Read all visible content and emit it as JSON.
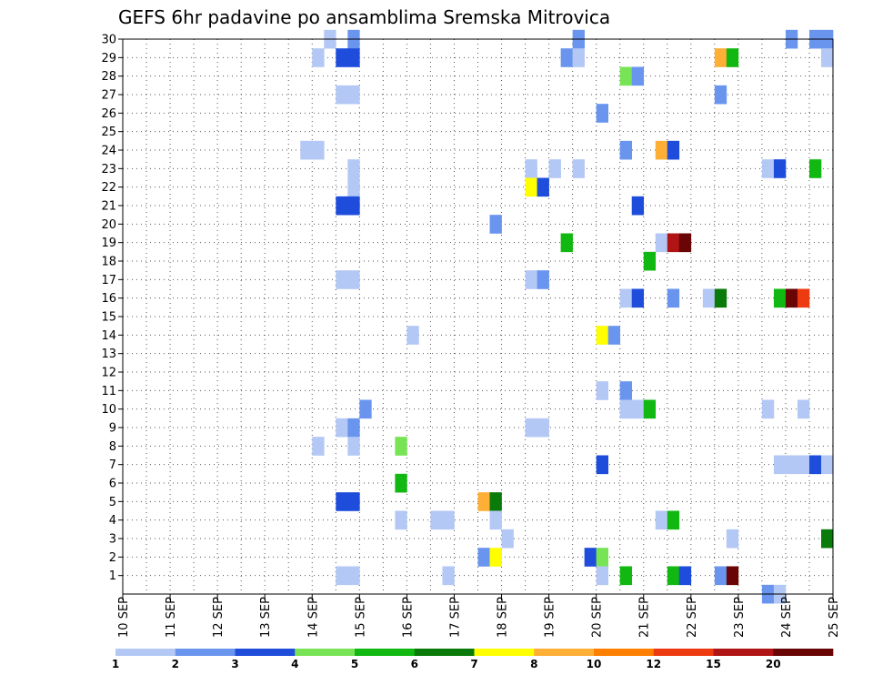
{
  "chart_data": {
    "type": "heatmap",
    "title": "GEFS 6hr padavine po ansamblima Sremska Mitrovica",
    "x_tick_labels": [
      "10 SEP",
      "11 SEP",
      "12 SEP",
      "13 SEP",
      "14 SEP",
      "15 SEP",
      "16 SEP",
      "17 SEP",
      "18 SEP",
      "19 SEP",
      "20 SEP",
      "21 SEP",
      "22 SEP",
      "23 SEP",
      "24 SEP",
      "25 SEP"
    ],
    "y_tick_labels": [
      "1",
      "2",
      "3",
      "4",
      "5",
      "6",
      "7",
      "8",
      "9",
      "10",
      "11",
      "12",
      "13",
      "14",
      "15",
      "16",
      "17",
      "18",
      "19",
      "20",
      "21",
      "22",
      "23",
      "24",
      "25",
      "26",
      "27",
      "28",
      "29",
      "30"
    ],
    "xlim": [
      0,
      60
    ],
    "ylim": [
      0,
      30
    ],
    "grid": true,
    "cell_note": "x = 6-hour step index from 10 SEP 00Z, y = ensemble member",
    "legend": {
      "colors": [
        "#b4c8f5",
        "#6a95ef",
        "#1e4ddb",
        "#78e455",
        "#11b811",
        "#0a7a0a",
        "#ffff00",
        "#ffae36",
        "#ff7f00",
        "#ee3a10",
        "#b01414",
        "#6a0505"
      ],
      "labels": [
        "1",
        "2",
        "3",
        "4",
        "5",
        "6",
        "7",
        "8",
        "10",
        "12",
        "15",
        "20"
      ]
    },
    "cells": [
      {
        "x": 17,
        "y": 30,
        "v": 1
      },
      {
        "x": 19,
        "y": 30,
        "v": 2
      },
      {
        "x": 38,
        "y": 30,
        "v": 2
      },
      {
        "x": 56,
        "y": 30,
        "v": 2
      },
      {
        "x": 58,
        "y": 30,
        "v": 2
      },
      {
        "x": 59,
        "y": 30,
        "v": 2
      },
      {
        "x": 16,
        "y": 29,
        "v": 1
      },
      {
        "x": 18,
        "y": 29,
        "v": 3
      },
      {
        "x": 19,
        "y": 29,
        "v": 3
      },
      {
        "x": 37,
        "y": 29,
        "v": 2
      },
      {
        "x": 38,
        "y": 29,
        "v": 1
      },
      {
        "x": 50,
        "y": 29,
        "v": 8
      },
      {
        "x": 51,
        "y": 29,
        "v": 5
      },
      {
        "x": 59,
        "y": 29,
        "v": 1
      },
      {
        "x": 42,
        "y": 28,
        "v": 4
      },
      {
        "x": 43,
        "y": 28,
        "v": 2
      },
      {
        "x": 18,
        "y": 27,
        "v": 1
      },
      {
        "x": 19,
        "y": 27,
        "v": 1
      },
      {
        "x": 50,
        "y": 27,
        "v": 2
      },
      {
        "x": 40,
        "y": 26,
        "v": 2
      },
      {
        "x": 15,
        "y": 24,
        "v": 1
      },
      {
        "x": 16,
        "y": 24,
        "v": 1
      },
      {
        "x": 42,
        "y": 24,
        "v": 2
      },
      {
        "x": 45,
        "y": 24,
        "v": 8
      },
      {
        "x": 46,
        "y": 24,
        "v": 3
      },
      {
        "x": 19,
        "y": 23,
        "v": 1
      },
      {
        "x": 34,
        "y": 23,
        "v": 1
      },
      {
        "x": 36,
        "y": 23,
        "v": 1
      },
      {
        "x": 38,
        "y": 23,
        "v": 1
      },
      {
        "x": 54,
        "y": 23,
        "v": 1
      },
      {
        "x": 55,
        "y": 23,
        "v": 3
      },
      {
        "x": 58,
        "y": 23,
        "v": 5
      },
      {
        "x": 19,
        "y": 22,
        "v": 1
      },
      {
        "x": 34,
        "y": 22,
        "v": 7
      },
      {
        "x": 35,
        "y": 22,
        "v": 3
      },
      {
        "x": 18,
        "y": 21,
        "v": 3
      },
      {
        "x": 19,
        "y": 21,
        "v": 3
      },
      {
        "x": 43,
        "y": 21,
        "v": 3
      },
      {
        "x": 31,
        "y": 20,
        "v": 2
      },
      {
        "x": 37,
        "y": 19,
        "v": 5
      },
      {
        "x": 45,
        "y": 19,
        "v": 1
      },
      {
        "x": 46,
        "y": 19,
        "v": 15
      },
      {
        "x": 47,
        "y": 19,
        "v": 20
      },
      {
        "x": 44,
        "y": 18,
        "v": 5
      },
      {
        "x": 18,
        "y": 17,
        "v": 1
      },
      {
        "x": 19,
        "y": 17,
        "v": 1
      },
      {
        "x": 34,
        "y": 17,
        "v": 1
      },
      {
        "x": 35,
        "y": 17,
        "v": 2
      },
      {
        "x": 42,
        "y": 16,
        "v": 1
      },
      {
        "x": 43,
        "y": 16,
        "v": 3
      },
      {
        "x": 46,
        "y": 16,
        "v": 2
      },
      {
        "x": 49,
        "y": 16,
        "v": 1
      },
      {
        "x": 50,
        "y": 16,
        "v": 6
      },
      {
        "x": 55,
        "y": 16,
        "v": 5
      },
      {
        "x": 56,
        "y": 16,
        "v": 20
      },
      {
        "x": 57,
        "y": 16,
        "v": 12
      },
      {
        "x": 24,
        "y": 14,
        "v": 1
      },
      {
        "x": 40,
        "y": 14,
        "v": 7
      },
      {
        "x": 41,
        "y": 14,
        "v": 2
      },
      {
        "x": 40,
        "y": 11,
        "v": 1
      },
      {
        "x": 42,
        "y": 11,
        "v": 2
      },
      {
        "x": 20,
        "y": 10,
        "v": 2
      },
      {
        "x": 42,
        "y": 10,
        "v": 1
      },
      {
        "x": 43,
        "y": 10,
        "v": 1
      },
      {
        "x": 44,
        "y": 10,
        "v": 5
      },
      {
        "x": 54,
        "y": 10,
        "v": 1
      },
      {
        "x": 57,
        "y": 10,
        "v": 1
      },
      {
        "x": 18,
        "y": 9,
        "v": 1
      },
      {
        "x": 19,
        "y": 9,
        "v": 2
      },
      {
        "x": 34,
        "y": 9,
        "v": 1
      },
      {
        "x": 35,
        "y": 9,
        "v": 1
      },
      {
        "x": 16,
        "y": 8,
        "v": 1
      },
      {
        "x": 19,
        "y": 8,
        "v": 1
      },
      {
        "x": 23,
        "y": 8,
        "v": 4
      },
      {
        "x": 40,
        "y": 7,
        "v": 3
      },
      {
        "x": 55,
        "y": 7,
        "v": 1
      },
      {
        "x": 56,
        "y": 7,
        "v": 1
      },
      {
        "x": 57,
        "y": 7,
        "v": 1
      },
      {
        "x": 58,
        "y": 7,
        "v": 3
      },
      {
        "x": 59,
        "y": 7,
        "v": 1
      },
      {
        "x": 23,
        "y": 6,
        "v": 5
      },
      {
        "x": 18,
        "y": 5,
        "v": 3
      },
      {
        "x": 19,
        "y": 5,
        "v": 3
      },
      {
        "x": 30,
        "y": 5,
        "v": 8
      },
      {
        "x": 31,
        "y": 5,
        "v": 6
      },
      {
        "x": 23,
        "y": 4,
        "v": 1
      },
      {
        "x": 26,
        "y": 4,
        "v": 1
      },
      {
        "x": 27,
        "y": 4,
        "v": 1
      },
      {
        "x": 31,
        "y": 4,
        "v": 1
      },
      {
        "x": 45,
        "y": 4,
        "v": 1
      },
      {
        "x": 46,
        "y": 4,
        "v": 5
      },
      {
        "x": 32,
        "y": 3,
        "v": 1
      },
      {
        "x": 51,
        "y": 3,
        "v": 1
      },
      {
        "x": 59,
        "y": 3,
        "v": 6
      },
      {
        "x": 30,
        "y": 2,
        "v": 2
      },
      {
        "x": 31,
        "y": 2,
        "v": 7
      },
      {
        "x": 39,
        "y": 2,
        "v": 3
      },
      {
        "x": 40,
        "y": 2,
        "v": 4
      },
      {
        "x": 18,
        "y": 1,
        "v": 1
      },
      {
        "x": 19,
        "y": 1,
        "v": 1
      },
      {
        "x": 27,
        "y": 1,
        "v": 1
      },
      {
        "x": 40,
        "y": 1,
        "v": 1
      },
      {
        "x": 42,
        "y": 1,
        "v": 5
      },
      {
        "x": 46,
        "y": 1,
        "v": 5
      },
      {
        "x": 47,
        "y": 1,
        "v": 3
      },
      {
        "x": 50,
        "y": 1,
        "v": 2
      },
      {
        "x": 51,
        "y": 1,
        "v": 20
      },
      {
        "x": 54,
        "y": 0,
        "v": 2
      },
      {
        "x": 55,
        "y": 0,
        "v": 1
      }
    ]
  }
}
